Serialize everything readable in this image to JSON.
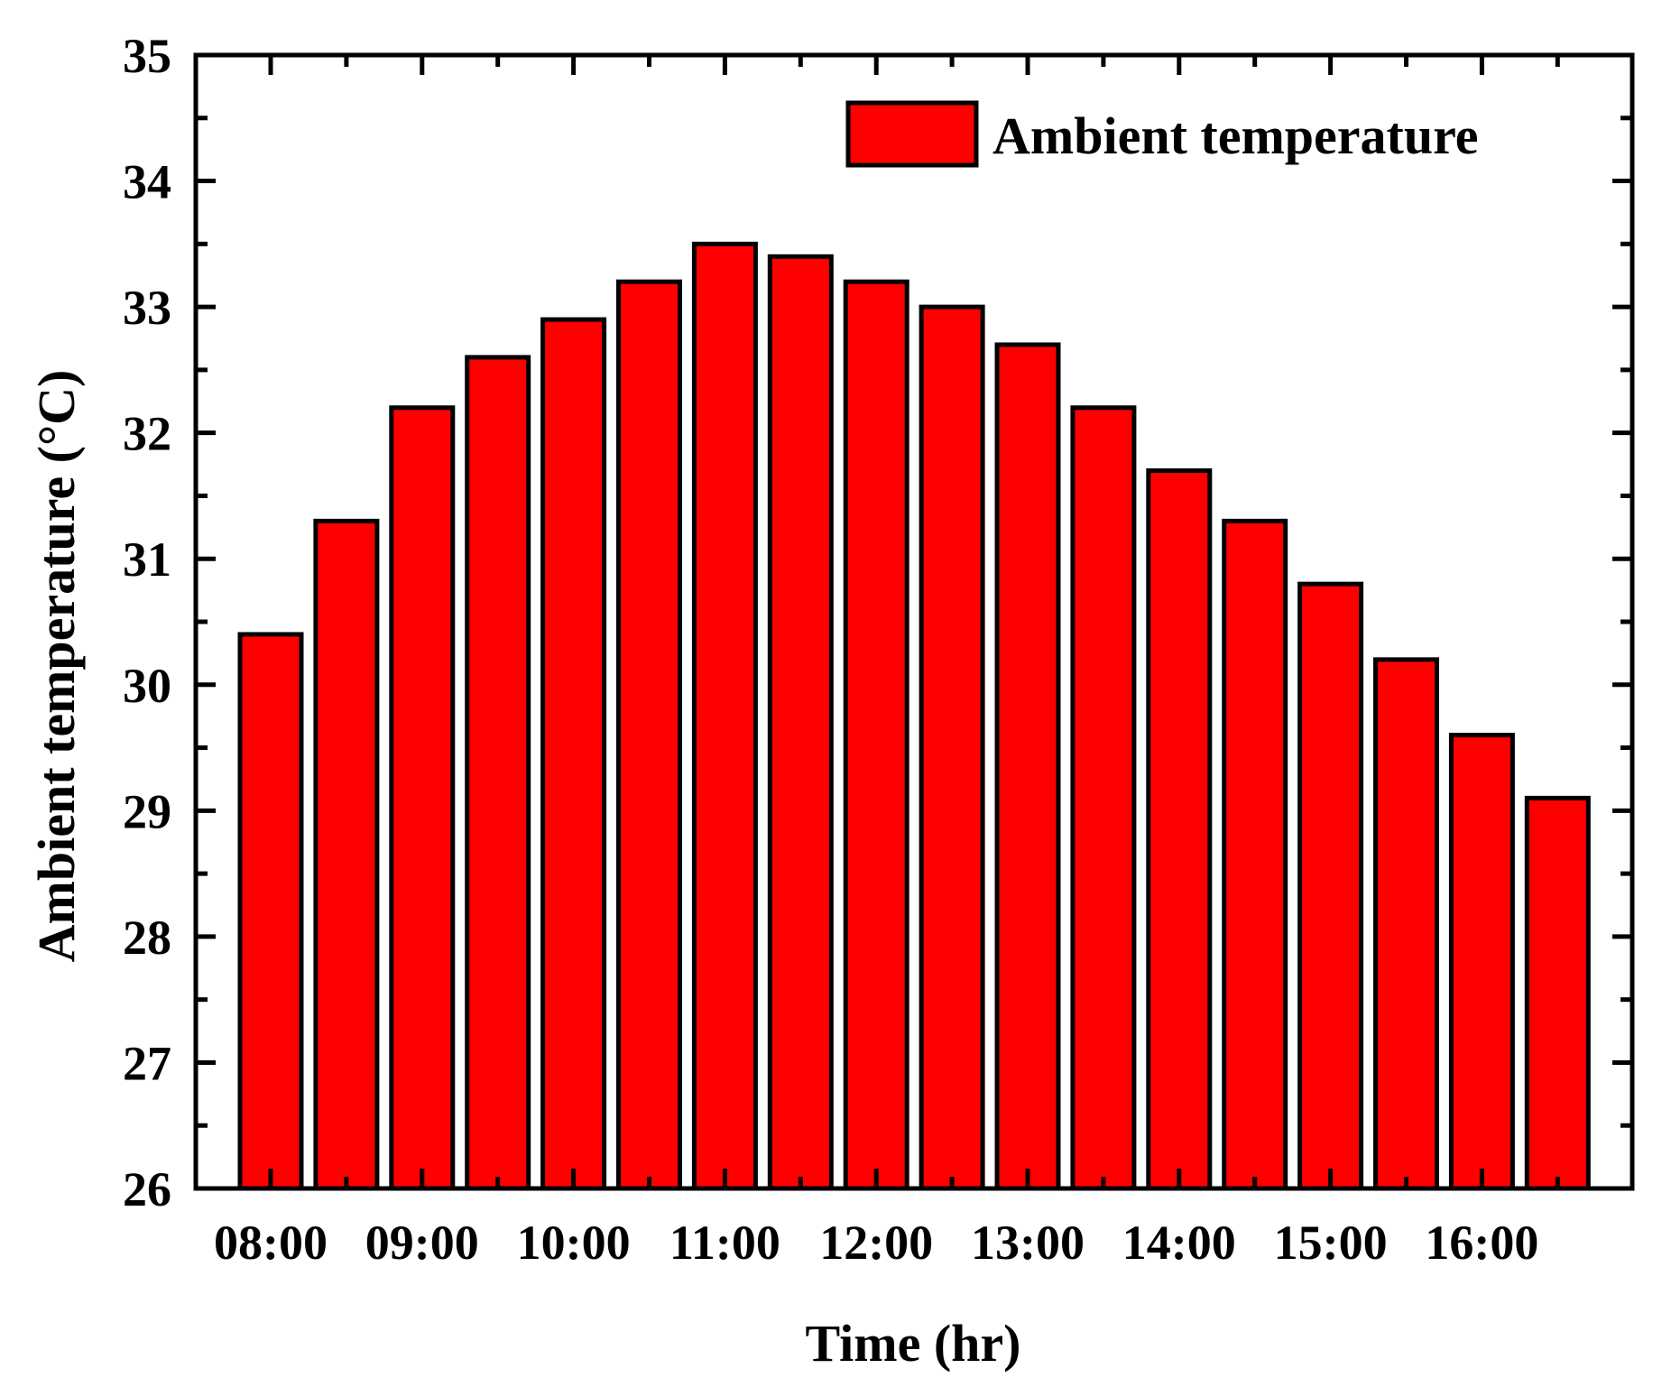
{
  "chart_data": {
    "type": "bar",
    "title": "",
    "xlabel": "Time (hr)",
    "ylabel": "Ambient temperature (°C)",
    "ylim": [
      26,
      35
    ],
    "yticks": [
      26,
      27,
      28,
      29,
      30,
      31,
      32,
      33,
      34,
      35
    ],
    "xtick_labels": [
      "08:00",
      "09:00",
      "10:00",
      "11:00",
      "12:00",
      "13:00",
      "14:00",
      "15:00",
      "16:00"
    ],
    "categories": [
      "08:00",
      "08:30",
      "09:00",
      "09:30",
      "10:00",
      "10:30",
      "11:00",
      "11:30",
      "12:00",
      "12:30",
      "13:00",
      "13:30",
      "14:00",
      "14:30",
      "15:00",
      "15:30",
      "16:00",
      "16:30"
    ],
    "series": [
      {
        "name": "Ambient temperature",
        "color": "#ff0000",
        "values": [
          30.4,
          31.3,
          32.2,
          32.6,
          32.9,
          33.2,
          33.5,
          33.4,
          33.2,
          33.0,
          32.7,
          32.2,
          31.7,
          31.3,
          30.8,
          30.2,
          29.6,
          29.1
        ]
      }
    ],
    "legend": {
      "position": "top-right"
    },
    "grid": false
  }
}
